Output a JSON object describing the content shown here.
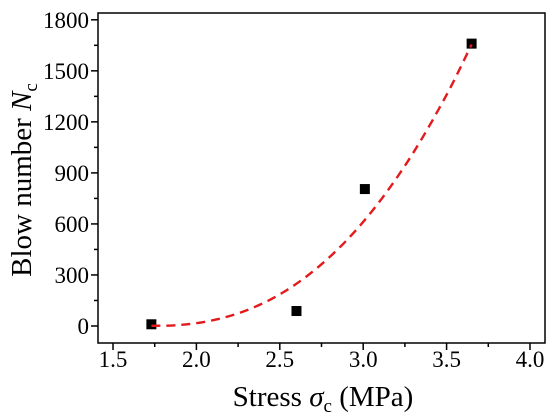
{
  "chart_data": {
    "type": "scatter",
    "xlabel": {
      "prefix": "Stress ",
      "symbol": "σ",
      "subscript": "c",
      "suffix": " (MPa)"
    },
    "ylabel": {
      "prefix": "Blow number ",
      "symbol": "N",
      "subscript": "c"
    },
    "xlim": [
      1.41,
      4.09
    ],
    "ylim": [
      -100,
      1840
    ],
    "xticks": [
      1.5,
      2.0,
      2.5,
      3.0,
      3.5,
      4.0
    ],
    "xtick_labels": [
      "1.5",
      "2.0",
      "2.5",
      "3.0",
      "3.5",
      "4.0"
    ],
    "yticks": [
      0,
      300,
      600,
      900,
      1200,
      1500,
      1800
    ],
    "ytick_labels": [
      "0",
      "300",
      "600",
      "900",
      "1200",
      "1500",
      "1800"
    ],
    "grid": false,
    "legend": null,
    "series": [
      {
        "type": "scatter",
        "color": "#000000",
        "x": [
          1.73,
          2.6,
          3.01,
          3.65
        ],
        "y": [
          10,
          88,
          805,
          1660
        ]
      },
      {
        "type": "line",
        "dashed": true,
        "color": "#e31a1c",
        "x": [
          1.73,
          1.9,
          2.1,
          2.3,
          2.5,
          2.7,
          2.9,
          3.1,
          3.3,
          3.5,
          3.65
        ],
        "y": [
          1,
          6,
          34,
          92,
          186,
          322,
          503,
          734,
          1018,
          1359,
          1655
        ]
      }
    ]
  }
}
